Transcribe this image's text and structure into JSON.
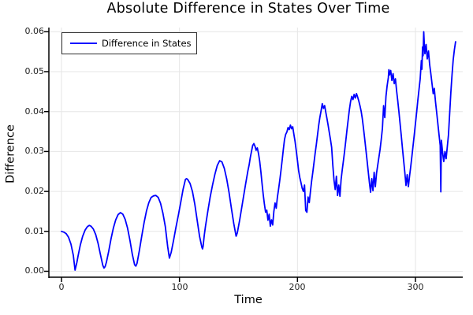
{
  "colors": {
    "background": "#ffffff",
    "grid": "#e6e6e6",
    "axis": "#000000",
    "text": "#000000",
    "legend_border": "#2e2e2e",
    "series_blue": "#0000ff"
  },
  "chart_data": {
    "type": "line",
    "title": "Absolute Difference in States Over Time",
    "xlabel": "Time",
    "ylabel": "Difference",
    "xlim": [
      -10.7,
      340.3
    ],
    "ylim": [
      -0.0015,
      0.0611
    ],
    "grid": true,
    "legend_position": "top-left",
    "xticks": [
      0,
      100,
      200,
      300
    ],
    "xtick_labels": [
      "0",
      "100",
      "200",
      "300"
    ],
    "yticks": [
      0,
      0.01,
      0.02,
      0.03,
      0.04,
      0.05,
      0.06
    ],
    "ytick_labels": [
      "0.00",
      "0.01",
      "0.02",
      "0.03",
      "0.04",
      "0.05",
      "0.06"
    ],
    "series": [
      {
        "name": "Difference in States",
        "color": "#0000ff",
        "points": [
          [
            0,
            0.01
          ],
          [
            2,
            0.0098
          ],
          [
            4,
            0.0094
          ],
          [
            6,
            0.0085
          ],
          [
            8,
            0.0068
          ],
          [
            10,
            0.004
          ],
          [
            11.5,
            0.0003
          ],
          [
            13,
            0.0022
          ],
          [
            14,
            0.0038
          ],
          [
            16,
            0.0066
          ],
          [
            18,
            0.0088
          ],
          [
            20,
            0.0103
          ],
          [
            22,
            0.0112
          ],
          [
            23.5,
            0.0115
          ],
          [
            25,
            0.0113
          ],
          [
            27,
            0.0106
          ],
          [
            29,
            0.0092
          ],
          [
            31,
            0.007
          ],
          [
            33,
            0.0042
          ],
          [
            35,
            0.0015
          ],
          [
            36,
            0.0008
          ],
          [
            37,
            0.0012
          ],
          [
            38,
            0.0022
          ],
          [
            40,
            0.005
          ],
          [
            42,
            0.0082
          ],
          [
            44,
            0.0109
          ],
          [
            46,
            0.0129
          ],
          [
            48,
            0.0142
          ],
          [
            50,
            0.0147
          ],
          [
            52,
            0.0143
          ],
          [
            54,
            0.013
          ],
          [
            56,
            0.0108
          ],
          [
            58,
            0.0078
          ],
          [
            60,
            0.0043
          ],
          [
            62,
            0.0016
          ],
          [
            63,
            0.0013
          ],
          [
            64,
            0.002
          ],
          [
            66,
            0.0052
          ],
          [
            68,
            0.0088
          ],
          [
            70,
            0.0122
          ],
          [
            72,
            0.0151
          ],
          [
            74,
            0.0172
          ],
          [
            76,
            0.0185
          ],
          [
            78,
            0.0189
          ],
          [
            80,
            0.019
          ],
          [
            82,
            0.0185
          ],
          [
            84,
            0.017
          ],
          [
            86,
            0.0145
          ],
          [
            88,
            0.0112
          ],
          [
            90,
            0.0062
          ],
          [
            91.5,
            0.0033
          ],
          [
            93,
            0.0048
          ],
          [
            95,
            0.0078
          ],
          [
            97,
            0.011
          ],
          [
            99,
            0.014
          ],
          [
            101,
            0.0172
          ],
          [
            103,
            0.0205
          ],
          [
            105,
            0.023
          ],
          [
            106,
            0.0232
          ],
          [
            107,
            0.023
          ],
          [
            109,
            0.022
          ],
          [
            111,
            0.02
          ],
          [
            113,
            0.0168
          ],
          [
            115,
            0.0128
          ],
          [
            117,
            0.0088
          ],
          [
            119,
            0.006
          ],
          [
            119.5,
            0.0056
          ],
          [
            120,
            0.0062
          ],
          [
            121,
            0.009
          ],
          [
            122,
            0.0112
          ],
          [
            124,
            0.015
          ],
          [
            126,
            0.0186
          ],
          [
            128,
            0.0216
          ],
          [
            130,
            0.0243
          ],
          [
            132,
            0.0265
          ],
          [
            134,
            0.0277
          ],
          [
            136,
            0.0274
          ],
          [
            138,
            0.0258
          ],
          [
            140,
            0.0232
          ],
          [
            142,
            0.0198
          ],
          [
            144,
            0.0158
          ],
          [
            146,
            0.012
          ],
          [
            148,
            0.0088
          ],
          [
            149,
            0.0096
          ],
          [
            150,
            0.0112
          ],
          [
            151,
            0.0128
          ],
          [
            152,
            0.0146
          ],
          [
            153,
            0.0164
          ],
          [
            154,
            0.0182
          ],
          [
            155,
            0.02
          ],
          [
            156,
            0.0218
          ],
          [
            157,
            0.0235
          ],
          [
            158,
            0.0252
          ],
          [
            159,
            0.0266
          ],
          [
            160,
            0.0285
          ],
          [
            161,
            0.03
          ],
          [
            162,
            0.0315
          ],
          [
            163,
            0.032
          ],
          [
            164,
            0.0313
          ],
          [
            165,
            0.0303
          ],
          [
            166,
            0.0309
          ],
          [
            167,
            0.0295
          ],
          [
            168,
            0.0276
          ],
          [
            169,
            0.025
          ],
          [
            170,
            0.022
          ],
          [
            171,
            0.0192
          ],
          [
            172,
            0.0168
          ],
          [
            173,
            0.0148
          ],
          [
            174,
            0.0153
          ],
          [
            175,
            0.0128
          ],
          [
            176,
            0.0143
          ],
          [
            177,
            0.0113
          ],
          [
            178,
            0.0129
          ],
          [
            179,
            0.0116
          ],
          [
            180,
            0.015
          ],
          [
            181,
            0.0171
          ],
          [
            182,
            0.0158
          ],
          [
            183,
            0.0186
          ],
          [
            184,
            0.0206
          ],
          [
            185,
            0.0228
          ],
          [
            186,
            0.0252
          ],
          [
            187,
            0.0278
          ],
          [
            188,
            0.0305
          ],
          [
            189,
            0.033
          ],
          [
            190,
            0.0343
          ],
          [
            191,
            0.0349
          ],
          [
            192,
            0.036
          ],
          [
            193,
            0.0355
          ],
          [
            194,
            0.0366
          ],
          [
            195,
            0.0357
          ],
          [
            196,
            0.0362
          ],
          [
            197,
            0.0343
          ],
          [
            198,
            0.0325
          ],
          [
            199,
            0.0302
          ],
          [
            200,
            0.0278
          ],
          [
            201,
            0.0252
          ],
          [
            202,
            0.0235
          ],
          [
            203,
            0.0222
          ],
          [
            204,
            0.0208
          ],
          [
            205,
            0.02
          ],
          [
            206,
            0.0216
          ],
          [
            207,
            0.0152
          ],
          [
            208,
            0.0148
          ],
          [
            209,
            0.0186
          ],
          [
            210,
            0.0172
          ],
          [
            211,
            0.02
          ],
          [
            212,
            0.0226
          ],
          [
            213,
            0.0248
          ],
          [
            214,
            0.0272
          ],
          [
            215,
            0.0296
          ],
          [
            216,
            0.0318
          ],
          [
            217,
            0.0342
          ],
          [
            218,
            0.0366
          ],
          [
            219,
            0.0386
          ],
          [
            220,
            0.0402
          ],
          [
            221,
            0.042
          ],
          [
            222,
            0.0408
          ],
          [
            223,
            0.0415
          ],
          [
            224,
            0.0398
          ],
          [
            225,
            0.0382
          ],
          [
            226,
            0.0366
          ],
          [
            227,
            0.0348
          ],
          [
            228,
            0.033
          ],
          [
            229,
            0.031
          ],
          [
            230,
            0.0265
          ],
          [
            231,
            0.0228
          ],
          [
            232,
            0.0205
          ],
          [
            233,
            0.0238
          ],
          [
            234,
            0.019
          ],
          [
            235,
            0.0216
          ],
          [
            236,
            0.0188
          ],
          [
            237,
            0.023
          ],
          [
            238,
            0.0255
          ],
          [
            239,
            0.0278
          ],
          [
            240,
            0.0302
          ],
          [
            241,
            0.0328
          ],
          [
            242,
            0.0355
          ],
          [
            243,
            0.038
          ],
          [
            244,
            0.0405
          ],
          [
            245,
            0.0425
          ],
          [
            246,
            0.0438
          ],
          [
            247,
            0.043
          ],
          [
            248,
            0.0443
          ],
          [
            249,
            0.0434
          ],
          [
            250,
            0.0445
          ],
          [
            251,
            0.0436
          ],
          [
            252,
            0.0426
          ],
          [
            253,
            0.0414
          ],
          [
            254,
            0.04
          ],
          [
            255,
            0.0382
          ],
          [
            256,
            0.0358
          ],
          [
            257,
            0.0332
          ],
          [
            258,
            0.0305
          ],
          [
            259,
            0.0278
          ],
          [
            260,
            0.025
          ],
          [
            261,
            0.0222
          ],
          [
            262,
            0.0198
          ],
          [
            263,
            0.0232
          ],
          [
            264,
            0.0202
          ],
          [
            265,
            0.0248
          ],
          [
            266,
            0.0212
          ],
          [
            267,
            0.0245
          ],
          [
            268,
            0.0265
          ],
          [
            269,
            0.0285
          ],
          [
            270,
            0.0305
          ],
          [
            271,
            0.033
          ],
          [
            272,
            0.0358
          ],
          [
            273,
            0.0415
          ],
          [
            274,
            0.0385
          ],
          [
            275,
            0.0438
          ],
          [
            276,
            0.0465
          ],
          [
            277,
            0.0485
          ],
          [
            277.5,
            0.0505
          ],
          [
            278,
            0.0492
          ],
          [
            279,
            0.0503
          ],
          [
            280,
            0.0478
          ],
          [
            281,
            0.0495
          ],
          [
            282,
            0.047
          ],
          [
            283,
            0.0482
          ],
          [
            284,
            0.0452
          ],
          [
            285,
            0.0428
          ],
          [
            286,
            0.04
          ],
          [
            287,
            0.037
          ],
          [
            288,
            0.034
          ],
          [
            289,
            0.0308
          ],
          [
            290,
            0.0278
          ],
          [
            291,
            0.0248
          ],
          [
            292,
            0.0215
          ],
          [
            293,
            0.0242
          ],
          [
            294,
            0.0212
          ],
          [
            295,
            0.0238
          ],
          [
            296,
            0.0262
          ],
          [
            297,
            0.0288
          ],
          [
            298,
            0.0315
          ],
          [
            299,
            0.0342
          ],
          [
            300,
            0.037
          ],
          [
            301,
            0.0398
          ],
          [
            302,
            0.0428
          ],
          [
            303,
            0.0455
          ],
          [
            304,
            0.0482
          ],
          [
            305,
            0.0528
          ],
          [
            305.5,
            0.0506
          ],
          [
            306,
            0.0562
          ],
          [
            306.5,
            0.054
          ],
          [
            307,
            0.06
          ],
          [
            307.5,
            0.057
          ],
          [
            308,
            0.0545
          ],
          [
            309,
            0.0568
          ],
          [
            310,
            0.0532
          ],
          [
            311,
            0.0552
          ],
          [
            312,
            0.0518
          ],
          [
            313,
            0.0495
          ],
          [
            314,
            0.047
          ],
          [
            315,
            0.0445
          ],
          [
            316,
            0.0458
          ],
          [
            317,
            0.0425
          ],
          [
            318,
            0.0398
          ],
          [
            319,
            0.037
          ],
          [
            320,
            0.0342
          ],
          [
            321,
            0.0315
          ],
          [
            321.5,
            0.0199
          ],
          [
            322,
            0.0328
          ],
          [
            323,
            0.0298
          ],
          [
            324,
            0.0275
          ],
          [
            325,
            0.03
          ],
          [
            326,
            0.0282
          ],
          [
            327,
            0.0312
          ],
          [
            328,
            0.0342
          ],
          [
            329,
            0.0395
          ],
          [
            330,
            0.0448
          ],
          [
            331,
            0.0492
          ],
          [
            332,
            0.053
          ],
          [
            333,
            0.0555
          ],
          [
            334,
            0.0575
          ]
        ]
      }
    ]
  }
}
